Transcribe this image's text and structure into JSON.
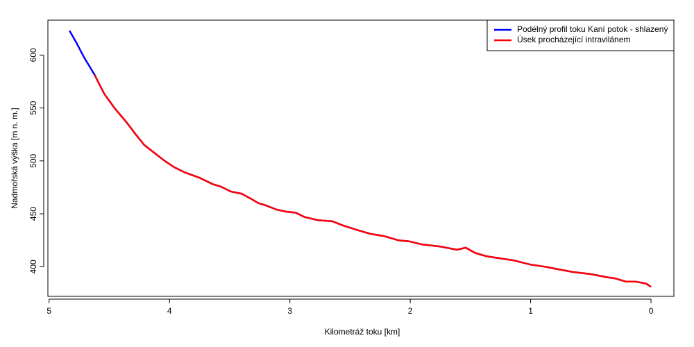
{
  "chart_data": {
    "type": "line",
    "xlabel": "Kilometráž toku [km]",
    "ylabel": "Nadmořská výška [m n. m.]",
    "xlim": [
      5.01,
      -0.19
    ],
    "ylim": [
      372,
      633
    ],
    "xticks": [
      5,
      4,
      3,
      2,
      1,
      0
    ],
    "yticks": [
      400,
      450,
      500,
      550,
      600
    ],
    "legend": "top-right",
    "series": [
      {
        "name": "Podélný profil toku Kaní potok - shlazený",
        "color": "#0000ff",
        "x": [
          4.83,
          4.77,
          4.71,
          4.62,
          4.59,
          4.54,
          4.45,
          4.36,
          4.28,
          4.21,
          4.13,
          4.04,
          3.96,
          3.87,
          3.75,
          3.64,
          3.58,
          3.49,
          3.4,
          3.32,
          3.26,
          3.2,
          3.11,
          3.03,
          2.95,
          2.88,
          2.77,
          2.65,
          2.56,
          2.45,
          2.33,
          2.22,
          2.1,
          2.01,
          1.9,
          1.75,
          1.61,
          1.54,
          1.46,
          1.37,
          1.26,
          1.14,
          1.0,
          0.88,
          0.79,
          0.65,
          0.5,
          0.36,
          0.3,
          0.21,
          0.13,
          0.04,
          0.0
        ],
        "values": [
          623,
          611,
          598,
          581,
          574,
          563,
          549,
          537,
          525,
          515,
          508,
          500,
          494,
          489,
          484,
          478,
          476,
          471,
          469,
          464,
          460,
          458,
          454,
          452,
          451,
          447,
          444,
          443,
          439,
          435,
          431,
          429,
          425,
          424,
          421,
          419,
          416,
          418,
          413,
          410,
          408,
          406,
          402,
          400,
          398,
          395,
          393,
          390,
          389,
          386,
          386,
          384,
          381
        ]
      },
      {
        "name": "Úsek procházející intravilánem",
        "color": "#ff0000",
        "x": [
          4.62,
          4.59,
          4.54,
          4.45,
          4.36,
          4.28,
          4.21,
          4.13,
          4.04,
          3.96,
          3.87,
          3.75,
          3.64,
          3.58,
          3.49,
          3.4,
          3.32,
          3.26,
          3.2,
          3.11,
          3.03,
          2.95,
          2.88,
          2.77,
          2.65,
          2.56,
          2.45,
          2.33,
          2.22,
          2.1,
          2.01,
          1.9,
          1.75,
          1.61,
          1.54,
          1.46,
          1.37,
          1.26,
          1.14,
          1.0,
          0.88,
          0.79,
          0.65,
          0.5,
          0.36,
          0.3,
          0.21,
          0.13,
          0.04,
          0.0
        ],
        "values": [
          581,
          574,
          563,
          549,
          537,
          525,
          515,
          508,
          500,
          494,
          489,
          484,
          478,
          476,
          471,
          469,
          464,
          460,
          458,
          454,
          452,
          451,
          447,
          444,
          443,
          439,
          435,
          431,
          429,
          425,
          424,
          421,
          419,
          416,
          418,
          413,
          410,
          408,
          406,
          402,
          400,
          398,
          395,
          393,
          390,
          389,
          386,
          386,
          384,
          381
        ]
      }
    ]
  }
}
